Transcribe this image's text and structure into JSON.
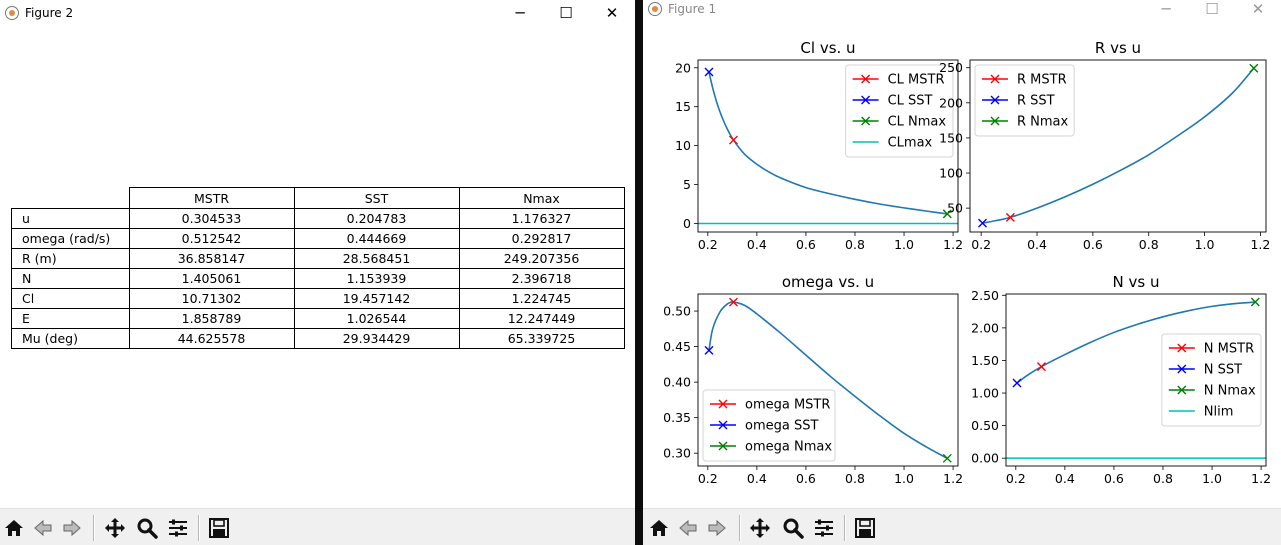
{
  "window_left": {
    "title": "Figure 2",
    "controls": {
      "minimize": "─",
      "maximize": "☐",
      "close": "✕"
    }
  },
  "window_right": {
    "title": "Figure 1",
    "controls": {
      "minimize": "─",
      "maximize": "☐",
      "close": "✕"
    }
  },
  "toolbar_icons": [
    "home-icon",
    "back-arrow-icon",
    "forward-arrow-icon",
    "pan-icon",
    "zoom-icon",
    "subplots-icon",
    "save-icon"
  ],
  "table": {
    "columns": [
      "MSTR",
      "SST",
      "Nmax"
    ],
    "rows": [
      {
        "label": "u",
        "values": [
          "0.304533",
          "0.204783",
          "1.176327"
        ]
      },
      {
        "label": "omega (rad/s)",
        "values": [
          "0.512542",
          "0.444669",
          "0.292817"
        ]
      },
      {
        "label": "R (m)",
        "values": [
          "36.858147",
          "28.568451",
          "249.207356"
        ]
      },
      {
        "label": "N",
        "values": [
          "1.405061",
          "1.153939",
          "2.396718"
        ]
      },
      {
        "label": "Cl",
        "values": [
          "10.71302",
          "19.457142",
          "1.224745"
        ]
      },
      {
        "label": "E",
        "values": [
          "1.858789",
          "1.026544",
          "12.247449"
        ]
      },
      {
        "label": "Mu (deg)",
        "values": [
          "44.625578",
          "29.934429",
          "65.339725"
        ]
      }
    ]
  },
  "colors": {
    "curve": "#1f77b4",
    "mstr": "#ff0000",
    "sst": "#0000ff",
    "nmax": "#008000",
    "limit": "#00bfbf"
  },
  "chart_data": [
    {
      "type": "line",
      "title": "Cl vs. u",
      "xlim": [
        0.16,
        1.22
      ],
      "ylim": [
        -1.1,
        21.0
      ],
      "xticks": [
        0.2,
        0.4,
        0.6,
        0.8,
        1.0,
        1.2
      ],
      "yticks": [
        0,
        5,
        10,
        15,
        20
      ],
      "curve": {
        "x": [
          0.204783,
          0.22,
          0.24,
          0.26,
          0.28,
          0.304533,
          0.35,
          0.4,
          0.45,
          0.5,
          0.6,
          0.7,
          0.8,
          0.9,
          1.0,
          1.1,
          1.176327
        ],
        "y": [
          19.457142,
          17.4,
          15.2,
          13.5,
          12.1,
          10.71302,
          8.9,
          7.6,
          6.6,
          5.8,
          4.6,
          3.8,
          3.1,
          2.5,
          2.0,
          1.55,
          1.224745
        ]
      },
      "points": [
        {
          "name": "CL MSTR",
          "x": 0.304533,
          "y": 10.71302,
          "color": "#ff0000"
        },
        {
          "name": "CL SST",
          "x": 0.204783,
          "y": 19.457142,
          "color": "#0000ff"
        },
        {
          "name": "CL Nmax",
          "x": 1.176327,
          "y": 1.224745,
          "color": "#008000"
        }
      ],
      "hline": {
        "name": "CLmax",
        "y": 0,
        "color": "#00bfbf"
      },
      "legend": "top-right"
    },
    {
      "type": "line",
      "title": "R vs u",
      "xlim": [
        0.16,
        1.22
      ],
      "ylim": [
        16.0,
        261.0
      ],
      "xticks": [
        0.2,
        0.4,
        0.6,
        0.8,
        1.0,
        1.2
      ],
      "yticks": [
        50,
        100,
        150,
        200,
        250
      ],
      "curve": {
        "x": [
          0.204783,
          0.25,
          0.304533,
          0.4,
          0.5,
          0.6,
          0.7,
          0.8,
          0.9,
          1.0,
          1.1,
          1.176327
        ],
        "y": [
          28.568451,
          32,
          36.858147,
          50,
          66,
          84,
          104,
          126,
          152,
          180,
          214,
          249.207356
        ]
      },
      "points": [
        {
          "name": "R MSTR",
          "x": 0.304533,
          "y": 36.858147,
          "color": "#ff0000"
        },
        {
          "name": "R SST",
          "x": 0.204783,
          "y": 28.568451,
          "color": "#0000ff"
        },
        {
          "name": "R Nmax",
          "x": 1.176327,
          "y": 249.207356,
          "color": "#008000"
        }
      ],
      "legend": "top-left"
    },
    {
      "type": "line",
      "title": "omega vs. u",
      "xlim": [
        0.16,
        1.22
      ],
      "ylim": [
        0.282,
        0.524
      ],
      "xticks": [
        0.2,
        0.4,
        0.6,
        0.8,
        1.0,
        1.2
      ],
      "yticks": [
        0.3,
        0.35,
        0.4,
        0.45,
        0.5
      ],
      "curve": {
        "x": [
          0.204783,
          0.22,
          0.25,
          0.28,
          0.304533,
          0.35,
          0.4,
          0.5,
          0.6,
          0.7,
          0.8,
          0.9,
          1.0,
          1.1,
          1.176327
        ],
        "y": [
          0.444669,
          0.475,
          0.499,
          0.51,
          0.512542,
          0.508,
          0.496,
          0.468,
          0.438,
          0.408,
          0.38,
          0.353,
          0.328,
          0.307,
          0.292817
        ]
      },
      "points": [
        {
          "name": "omega MSTR",
          "x": 0.304533,
          "y": 0.512542,
          "color": "#ff0000"
        },
        {
          "name": "omega SST",
          "x": 0.204783,
          "y": 0.444669,
          "color": "#0000ff"
        },
        {
          "name": "omega Nmax",
          "x": 1.176327,
          "y": 0.292817,
          "color": "#008000"
        }
      ],
      "legend": "bottom-left"
    },
    {
      "type": "line",
      "title": "N vs u",
      "xlim": [
        0.16,
        1.22
      ],
      "ylim": [
        -0.12,
        2.52
      ],
      "xticks": [
        0.2,
        0.4,
        0.6,
        0.8,
        1.0,
        1.2
      ],
      "yticks": [
        0.0,
        0.5,
        1.0,
        1.5,
        2.0,
        2.5
      ],
      "curve": {
        "x": [
          0.204783,
          0.25,
          0.304533,
          0.4,
          0.5,
          0.6,
          0.7,
          0.8,
          0.9,
          1.0,
          1.1,
          1.176327
        ],
        "y": [
          1.153939,
          1.28,
          1.405061,
          1.59,
          1.77,
          1.93,
          2.06,
          2.17,
          2.26,
          2.33,
          2.375,
          2.396718
        ]
      },
      "points": [
        {
          "name": "N MSTR",
          "x": 0.304533,
          "y": 1.405061,
          "color": "#ff0000"
        },
        {
          "name": "N SST",
          "x": 0.204783,
          "y": 1.153939,
          "color": "#0000ff"
        },
        {
          "name": "N Nmax",
          "x": 1.176327,
          "y": 2.396718,
          "color": "#008000"
        }
      ],
      "hline": {
        "name": "Nlim",
        "y": 0,
        "color": "#00bfbf"
      },
      "legend": "center-right"
    }
  ]
}
